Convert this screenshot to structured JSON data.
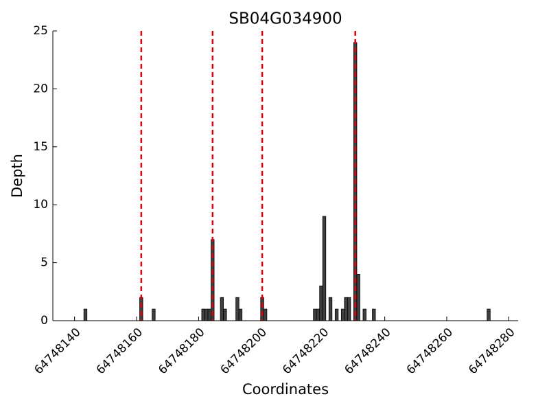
{
  "chart_data": {
    "type": "bar",
    "title": "SB04G034900",
    "xlabel": "Coordinates",
    "ylabel": "Depth",
    "x": [
      64748143,
      64748161,
      64748165,
      64748181,
      64748182,
      64748183,
      64748184,
      64748187,
      64748188,
      64748192,
      64748193,
      64748200,
      64748201,
      64748217,
      64748218,
      64748219,
      64748220,
      64748222,
      64748224,
      64748226,
      64748227,
      64748228,
      64748230,
      64748231,
      64748233,
      64748236,
      64748273
    ],
    "values": [
      1,
      2,
      1,
      1,
      1,
      1,
      7,
      2,
      1,
      2,
      1,
      2,
      1,
      1,
      1,
      3,
      9,
      2,
      1,
      1,
      2,
      2,
      24,
      4,
      1,
      1,
      1
    ],
    "color": "#404040",
    "markers": [
      64748161.5,
      64748184.5,
      64748200.5,
      64748230.5
    ],
    "marker_color": "#e8000b",
    "xlim": [
      64748133,
      64748283
    ],
    "xticks": [
      64748140,
      64748160,
      64748180,
      64748200,
      64748220,
      64748240,
      64748260,
      64748280
    ],
    "ylim": [
      0,
      25
    ],
    "yticks": [
      0,
      5,
      10,
      15,
      20,
      25
    ]
  }
}
